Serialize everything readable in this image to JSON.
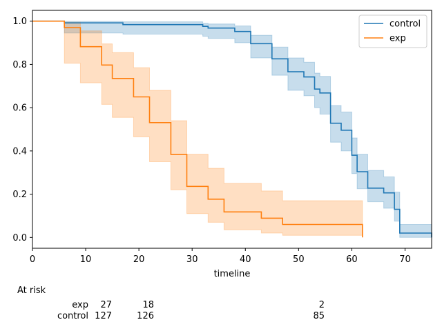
{
  "chart_data": {
    "type": "line",
    "title": "",
    "xlabel": "timeline",
    "ylabel": "",
    "xlim": [
      0,
      75
    ],
    "ylim": [
      -0.05,
      1.05
    ],
    "xticks": [
      0,
      10,
      20,
      30,
      40,
      50,
      60,
      70
    ],
    "yticks": [
      0.0,
      0.2,
      0.4,
      0.6,
      0.8,
      1.0
    ],
    "xtick_labels": [
      "0",
      "10",
      "20",
      "30",
      "40",
      "50",
      "60",
      "70"
    ],
    "ytick_labels": [
      "0.0",
      "0.2",
      "0.4",
      "0.6",
      "0.8",
      "1.0"
    ],
    "legend": {
      "position": "top-right"
    },
    "series": [
      {
        "name": "control",
        "color": "#1f77b4",
        "ci_color": "#a6c6e2",
        "steps": [
          [
            0,
            1.0
          ],
          [
            6,
            0.992
          ],
          [
            17,
            0.984
          ],
          [
            32,
            0.976
          ],
          [
            33,
            0.968
          ],
          [
            38,
            0.952
          ],
          [
            41,
            0.896
          ],
          [
            45,
            0.826
          ],
          [
            48,
            0.766
          ],
          [
            51,
            0.742
          ],
          [
            53,
            0.686
          ],
          [
            54,
            0.668
          ],
          [
            56,
            0.528
          ],
          [
            58,
            0.496
          ],
          [
            60,
            0.38
          ],
          [
            61,
            0.304
          ],
          [
            63,
            0.228
          ],
          [
            66,
            0.206
          ],
          [
            68,
            0.13
          ],
          [
            69,
            0.02
          ],
          [
            75,
            0.0
          ]
        ],
        "ci": [
          [
            0,
            1.0,
            1.0
          ],
          [
            6,
            0.945,
            0.999
          ],
          [
            17,
            0.94,
            0.997
          ],
          [
            32,
            0.93,
            0.99
          ],
          [
            33,
            0.92,
            0.987
          ],
          [
            38,
            0.9,
            0.978
          ],
          [
            41,
            0.83,
            0.935
          ],
          [
            45,
            0.75,
            0.88
          ],
          [
            48,
            0.68,
            0.83
          ],
          [
            51,
            0.655,
            0.81
          ],
          [
            53,
            0.6,
            0.76
          ],
          [
            54,
            0.57,
            0.745
          ],
          [
            56,
            0.44,
            0.61
          ],
          [
            58,
            0.4,
            0.58
          ],
          [
            60,
            0.295,
            0.46
          ],
          [
            61,
            0.225,
            0.385
          ],
          [
            63,
            0.165,
            0.31
          ],
          [
            66,
            0.135,
            0.28
          ],
          [
            68,
            0.075,
            0.21
          ],
          [
            69,
            0.0,
            0.06
          ],
          [
            75,
            0.0,
            0.06
          ]
        ]
      },
      {
        "name": "exp",
        "color": "#ff7f0e",
        "ci_color": "#ffd5b3",
        "steps": [
          [
            0,
            1.0
          ],
          [
            6,
            0.97
          ],
          [
            9,
            0.882
          ],
          [
            13,
            0.797
          ],
          [
            15,
            0.735
          ],
          [
            19,
            0.65
          ],
          [
            22,
            0.531
          ],
          [
            26,
            0.384
          ],
          [
            29,
            0.236
          ],
          [
            33,
            0.177
          ],
          [
            36,
            0.118
          ],
          [
            43,
            0.089
          ],
          [
            47,
            0.06
          ],
          [
            62,
            0.0
          ]
        ],
        "ci": [
          [
            0,
            1.0,
            1.0
          ],
          [
            6,
            0.805,
            0.995
          ],
          [
            9,
            0.715,
            0.955
          ],
          [
            13,
            0.615,
            0.895
          ],
          [
            15,
            0.555,
            0.855
          ],
          [
            19,
            0.465,
            0.785
          ],
          [
            22,
            0.35,
            0.68
          ],
          [
            26,
            0.22,
            0.54
          ],
          [
            29,
            0.11,
            0.385
          ],
          [
            33,
            0.07,
            0.32
          ],
          [
            36,
            0.035,
            0.25
          ],
          [
            43,
            0.02,
            0.215
          ],
          [
            47,
            0.01,
            0.17
          ],
          [
            62,
            0.01,
            0.17
          ]
        ]
      }
    ],
    "at_risk": {
      "title": "At risk",
      "times": [
        10,
        20,
        55
      ],
      "rows": [
        {
          "label": "exp",
          "counts": [
            "27",
            "18",
            "2"
          ]
        },
        {
          "label": "control",
          "counts": [
            "127",
            "126",
            "85"
          ]
        }
      ]
    }
  }
}
